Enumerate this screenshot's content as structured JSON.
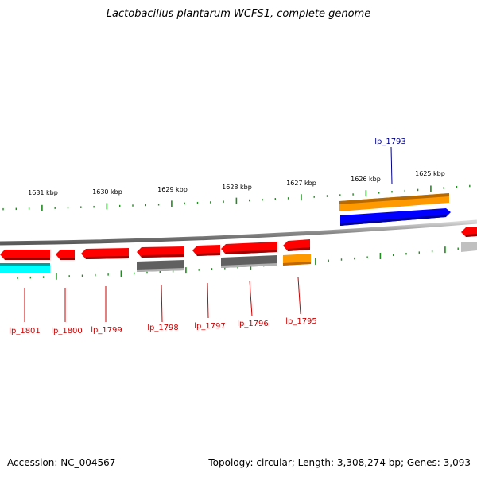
{
  "title": "Lactobacillus plantarum WCFS1, complete genome",
  "accession_text": "Accession: NC_004567",
  "summary_text": "Topology: circular; Length: 3,308,274 bp; Genes: 3,093",
  "scale_labels": [
    "1631 kbp",
    "1630 kbp",
    "1629 kbp",
    "1628 kbp",
    "1627 kbp",
    "1626 kbp",
    "1625 kbp"
  ],
  "gene_labels": [
    {
      "text": "lp_1801",
      "color": "#cc0000"
    },
    {
      "text": "lp_1800",
      "color": "#cc0000"
    },
    {
      "text": "lp_1799",
      "color": "#cc0000"
    },
    {
      "text": "lp_1798",
      "color": "#cc0000"
    },
    {
      "text": "lp_1797",
      "color": "#cc0000"
    },
    {
      "text": "lp_1796",
      "color": "#cc0000"
    },
    {
      "text": "lp_1795",
      "color": "#cc0000"
    },
    {
      "text": "lp_1793",
      "color": "#00008b"
    }
  ],
  "colors": {
    "gene_red": "#ff0000",
    "cyan": "#00ffff",
    "gray": "#606060",
    "light_gray": "#c0c0c0",
    "orange": "#ff9900",
    "blue": "#0000ff",
    "backbone": "#888888",
    "ticks": "#228b22"
  },
  "icons": [
    "gene-arrow-icon"
  ]
}
